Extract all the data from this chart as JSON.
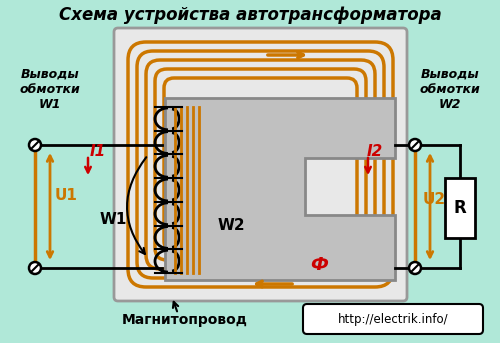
{
  "title": "Схема устройства автотрансформатора",
  "bg_color": "#b0e8d8",
  "winding_color": "#cc7700",
  "black": "#000000",
  "red": "#cc0000",
  "white": "#ffffff",
  "gray_core": "#c0c0c0",
  "gray_core_dark": "#aaaaaa",
  "label_w1_top": "Выводы\nобмотки\nW1",
  "label_w2_top": "Выводы\nобмотки\nW2",
  "label_I1": "I1",
  "label_U1": "U1",
  "label_W1": "W1",
  "label_W2": "W2",
  "label_I2": "I2",
  "label_U2": "U2",
  "label_R": "R",
  "label_Phi": "Ф",
  "label_mag": "Магнитопровод",
  "label_url": "http://electrik.info/",
  "figsize": [
    5.0,
    3.43
  ],
  "dpi": 100
}
